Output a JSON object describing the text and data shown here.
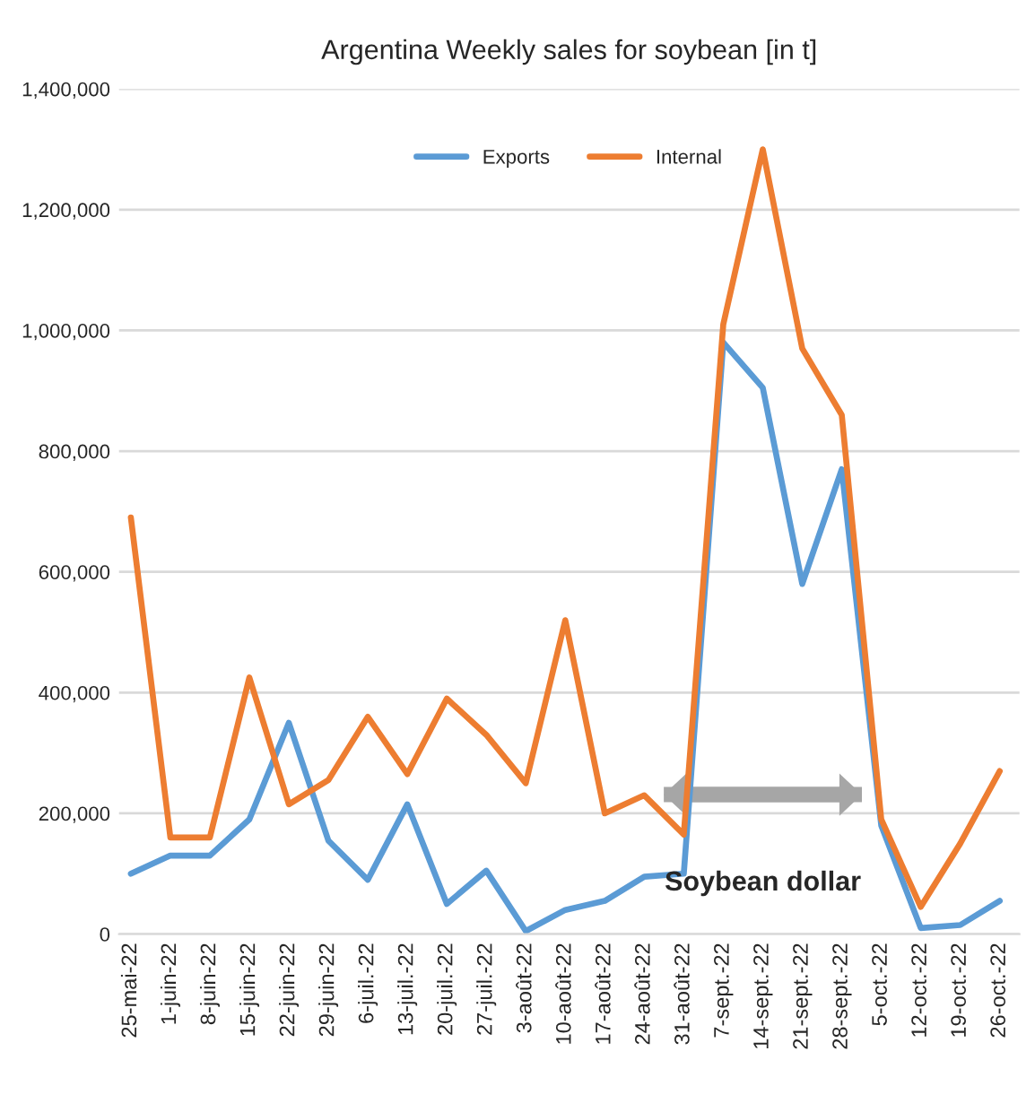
{
  "chart_data": {
    "type": "line",
    "title": "Argentina Weekly sales for soybean [in t]",
    "categories": [
      "25-mai-22",
      "1-juin-22",
      "8-juin-22",
      "15-juin-22",
      "22-juin-22",
      "29-juin-22",
      "6-juil.-22",
      "13-juil.-22",
      "20-juil.-22",
      "27-juil.-22",
      "3-août-22",
      "10-août-22",
      "17-août-22",
      "24-août-22",
      "31-août-22",
      "7-sept.-22",
      "14-sept.-22",
      "21-sept.-22",
      "28-sept.-22",
      "5-oct.-22",
      "12-oct.-22",
      "19-oct.-22",
      "26-oct.-22"
    ],
    "series": [
      {
        "name": "Exports",
        "color": "#5b9bd5",
        "values": [
          100000,
          130000,
          130000,
          190000,
          350000,
          155000,
          90000,
          215000,
          50000,
          105000,
          5000,
          40000,
          55000,
          95000,
          100000,
          980000,
          905000,
          580000,
          770000,
          180000,
          10000,
          15000,
          55000
        ]
      },
      {
        "name": "Internal",
        "color": "#ed7d31",
        "values": [
          690000,
          160000,
          160000,
          425000,
          215000,
          255000,
          360000,
          265000,
          390000,
          330000,
          250000,
          520000,
          200000,
          230000,
          165000,
          1010000,
          1300000,
          970000,
          860000,
          190000,
          45000,
          150000,
          270000
        ]
      }
    ],
    "ylim": [
      0,
      1400000
    ],
    "yticks": [
      {
        "value": 0,
        "label": "0"
      },
      {
        "value": 200000,
        "label": "200,000"
      },
      {
        "value": 400000,
        "label": "400,000"
      },
      {
        "value": 600000,
        "label": "600,000"
      },
      {
        "value": 800000,
        "label": "800,000"
      },
      {
        "value": 1000000,
        "label": "1,000,000"
      },
      {
        "value": 1200000,
        "label": "1,200,000"
      },
      {
        "value": 1400000,
        "label": "1,400,000"
      }
    ],
    "grid": "y",
    "legend": "top",
    "marker": "none",
    "line_style": "solid",
    "annotations": [
      "Soybean dollar"
    ]
  }
}
